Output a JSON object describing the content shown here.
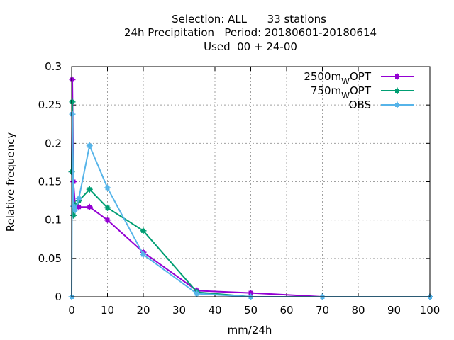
{
  "chart_data": {
    "type": "line",
    "title_lines": [
      "Selection: ALL      33 stations",
      "24h Precipitation   Period: 20180601-20180614",
      "Used  00 + 24-00"
    ],
    "xlabel": "mm/24h",
    "ylabel": "Relative frequency",
    "xlim": [
      0,
      100
    ],
    "ylim": [
      0,
      0.3
    ],
    "xticks": [
      "0",
      "10",
      "20",
      "30",
      "40",
      "50",
      "60",
      "70",
      "80",
      "90",
      "100"
    ],
    "yticks": [
      "0",
      "0.05",
      "0.1",
      "0.15",
      "0.2",
      "0.25",
      "0.3"
    ],
    "grid": true,
    "legend_position": "top-right",
    "series": [
      {
        "name": "2500m",
        "name_sub": "W",
        "name_suffix": "OPT",
        "color": "#9400d3",
        "points": [
          [
            0,
            0.163
          ],
          [
            0.2,
            0.283
          ],
          [
            0.5,
            0.15
          ],
          [
            1,
            0.117
          ],
          [
            2,
            0.117
          ],
          [
            5,
            0.117
          ],
          [
            10,
            0.1
          ],
          [
            20,
            0.058
          ],
          [
            35,
            0.008
          ],
          [
            50,
            0.005
          ],
          [
            70,
            0.0
          ],
          [
            100,
            0.0
          ]
        ]
      },
      {
        "name": "750m",
        "name_sub": "W",
        "name_suffix": "OPT",
        "color": "#009e73",
        "points": [
          [
            0,
            0.163
          ],
          [
            0.2,
            0.254
          ],
          [
            0.5,
            0.106
          ],
          [
            1,
            0.12
          ],
          [
            2,
            0.125
          ],
          [
            5,
            0.14
          ],
          [
            10,
            0.116
          ],
          [
            20,
            0.086
          ],
          [
            35,
            0.006
          ],
          [
            50,
            0.0
          ],
          [
            70,
            0.0
          ],
          [
            100,
            0.0
          ]
        ]
      },
      {
        "name": "OBS",
        "name_sub": "",
        "name_suffix": "",
        "color": "#56b4e9",
        "points": [
          [
            0,
            0.0
          ],
          [
            0.2,
            0.238
          ],
          [
            0.5,
            0.118
          ],
          [
            1,
            0.113
          ],
          [
            2,
            0.128
          ],
          [
            5,
            0.197
          ],
          [
            10,
            0.142
          ],
          [
            20,
            0.055
          ],
          [
            35,
            0.004
          ],
          [
            50,
            0.0
          ],
          [
            70,
            0.0
          ],
          [
            100,
            0.0
          ]
        ]
      }
    ]
  }
}
